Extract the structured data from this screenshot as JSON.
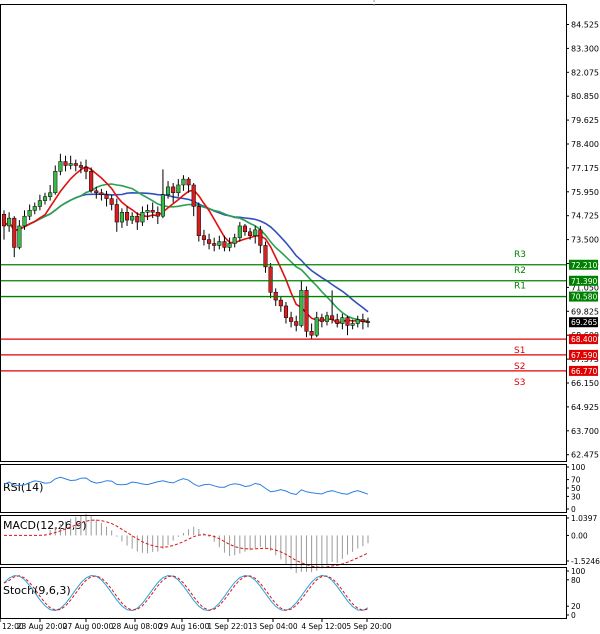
{
  "chart_data": {
    "type": "candlestick",
    "main": {
      "yticks": [
        "84.525",
        "83.300",
        "82.075",
        "80.850",
        "79.625",
        "78.400",
        "77.175",
        "75.950",
        "74.725",
        "73.500",
        "72.275",
        "71.050",
        "69.825",
        "68.600",
        "67.375",
        "66.150",
        "64.925",
        "63.700",
        "62.475"
      ],
      "current_price": "69.265",
      "levels": [
        {
          "name": "R3",
          "value": "72.210",
          "color": "#008000"
        },
        {
          "name": "R2",
          "value": "71.390",
          "color": "#008000"
        },
        {
          "name": "R1",
          "value": "70.580",
          "color": "#008000"
        },
        {
          "name": "S1",
          "value": "68.400",
          "color": "#e00000"
        },
        {
          "name": "S2",
          "value": "67.590",
          "color": "#e00000"
        },
        {
          "name": "S3",
          "value": "66.770",
          "color": "#e00000"
        }
      ],
      "candles": [
        [
          74.8,
          74.2,
          75.0,
          73.5
        ],
        [
          74.2,
          74.6,
          74.9,
          73.9
        ],
        [
          74.6,
          73.1,
          74.7,
          72.6
        ],
        [
          73.1,
          74.2,
          74.5,
          73.0
        ],
        [
          74.2,
          74.7,
          75.0,
          74.0
        ],
        [
          74.7,
          75.0,
          75.3,
          74.5
        ],
        [
          75.0,
          75.2,
          75.4,
          74.8
        ],
        [
          75.2,
          75.5,
          75.8,
          75.0
        ],
        [
          75.5,
          75.7,
          75.9,
          75.3
        ],
        [
          75.7,
          75.9,
          76.3,
          75.5
        ],
        [
          75.9,
          77.0,
          77.3,
          75.8
        ],
        [
          77.0,
          77.5,
          77.9,
          76.8
        ],
        [
          77.5,
          77.3,
          77.8,
          77.0
        ],
        [
          77.3,
          77.4,
          77.8,
          77.1
        ],
        [
          77.4,
          77.3,
          77.6,
          77.0
        ],
        [
          77.3,
          77.2,
          77.5,
          76.9
        ],
        [
          77.2,
          77.0,
          77.6,
          76.6
        ],
        [
          77.0,
          76.0,
          77.2,
          75.9
        ],
        [
          76.0,
          75.9,
          76.2,
          75.6
        ],
        [
          75.9,
          75.8,
          76.1,
          75.5
        ],
        [
          75.8,
          75.6,
          76.0,
          75.2
        ],
        [
          75.6,
          75.3,
          75.8,
          75.0
        ],
        [
          75.3,
          74.4,
          75.6,
          73.9
        ],
        [
          74.4,
          74.9,
          75.1,
          74.1
        ],
        [
          74.9,
          74.5,
          75.2,
          74.2
        ],
        [
          74.5,
          74.7,
          74.9,
          74.3
        ],
        [
          74.7,
          74.4,
          74.9,
          74.0
        ],
        [
          74.4,
          74.9,
          75.2,
          74.2
        ],
        [
          74.9,
          75.0,
          75.3,
          74.5
        ],
        [
          75.0,
          74.9,
          75.4,
          74.6
        ],
        [
          74.9,
          74.7,
          75.2,
          74.3
        ],
        [
          74.7,
          75.8,
          77.1,
          74.6
        ],
        [
          75.8,
          76.2,
          76.5,
          75.6
        ],
        [
          76.2,
          75.9,
          76.4,
          75.4
        ],
        [
          75.9,
          76.3,
          76.6,
          75.7
        ],
        [
          76.3,
          76.6,
          76.8,
          76.0
        ],
        [
          76.6,
          76.3,
          76.7,
          75.9
        ],
        [
          76.3,
          75.2,
          76.4,
          74.7
        ],
        [
          75.2,
          73.7,
          75.4,
          73.4
        ],
        [
          73.7,
          73.5,
          74.0,
          73.2
        ],
        [
          73.5,
          73.3,
          73.8,
          73.0
        ],
        [
          73.3,
          73.2,
          73.6,
          72.9
        ],
        [
          73.2,
          73.4,
          73.7,
          73.0
        ],
        [
          73.4,
          73.1,
          73.7,
          72.9
        ],
        [
          73.1,
          73.3,
          73.6,
          72.9
        ],
        [
          73.3,
          73.6,
          73.8,
          73.1
        ],
        [
          73.6,
          74.2,
          74.4,
          73.4
        ],
        [
          74.2,
          73.9,
          74.3,
          73.7
        ],
        [
          73.9,
          73.7,
          74.1,
          73.5
        ],
        [
          73.7,
          74.0,
          74.2,
          73.3
        ],
        [
          74.0,
          73.2,
          74.2,
          72.8
        ],
        [
          73.2,
          72.1,
          73.4,
          71.8
        ],
        [
          72.1,
          70.8,
          72.3,
          70.5
        ],
        [
          70.8,
          70.4,
          71.0,
          70.1
        ],
        [
          70.4,
          70.1,
          70.6,
          69.8
        ],
        [
          70.1,
          69.5,
          70.3,
          69.2
        ],
        [
          69.5,
          69.3,
          69.8,
          69.0
        ],
        [
          69.3,
          69.1,
          69.6,
          68.8
        ],
        [
          69.1,
          70.9,
          71.4,
          69.0
        ],
        [
          70.9,
          68.8,
          71.1,
          68.5
        ],
        [
          68.8,
          68.6,
          69.2,
          68.4
        ],
        [
          68.6,
          69.5,
          69.8,
          68.5
        ],
        [
          69.5,
          69.3,
          69.7,
          69.0
        ],
        [
          69.3,
          69.6,
          69.8,
          69.1
        ],
        [
          69.6,
          69.4,
          70.9,
          69.2
        ],
        [
          69.4,
          69.2,
          69.7,
          69.0
        ],
        [
          69.2,
          69.5,
          69.7,
          68.9
        ],
        [
          69.5,
          69.1,
          69.6,
          68.6
        ],
        [
          69.1,
          69.2,
          69.4,
          68.9
        ],
        [
          69.2,
          69.4,
          69.6,
          69.0
        ],
        [
          69.4,
          69.3,
          69.7,
          68.9
        ],
        [
          69.3,
          69.265,
          69.5,
          69.0
        ]
      ]
    },
    "xticks": [
      "12:00",
      "23 Aug 20:00",
      "27 Aug 00:00",
      "28 Aug 08:00",
      "29 Aug 16:00",
      "1 Sep 22:01",
      "3 Sep 04:00",
      "4 Sep 12:00",
      "5 Sep 20:00"
    ],
    "rsi": {
      "label": "RSI(14)",
      "yticks": [
        "100",
        "70",
        "50",
        "30",
        "0"
      ]
    },
    "macd": {
      "label": "MACD(12,26,9)",
      "yticks": [
        "1.0397",
        "0.00",
        "-1.5246"
      ]
    },
    "stoch": {
      "label": "Stoch(9,6,3)",
      "yticks": [
        "100",
        "80",
        "20",
        "0"
      ]
    }
  }
}
